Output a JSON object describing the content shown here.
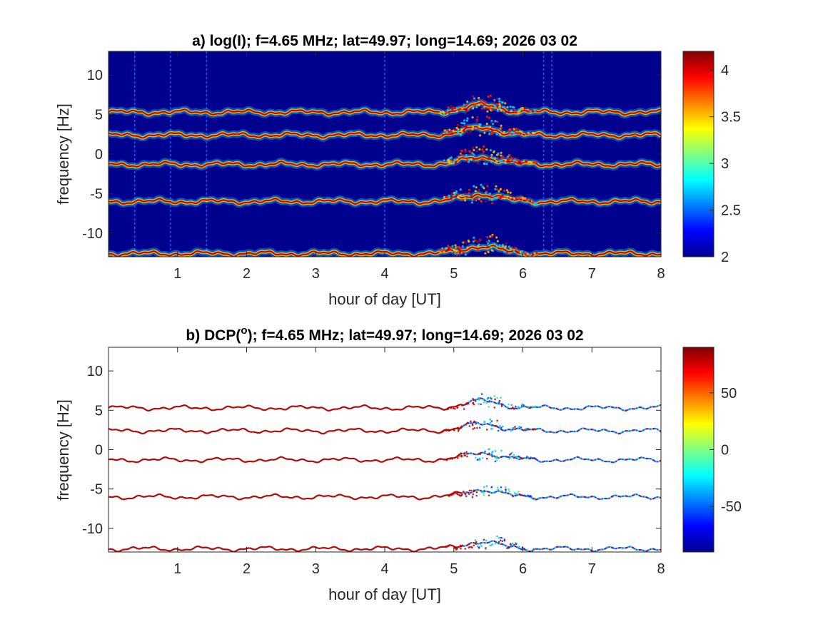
{
  "chart_data": [
    {
      "type": "heatmap",
      "title_main": "a) log(I); f=4.65 MHz;  lat=49.97; long=14.69; 2026 03 02",
      "xlabel": "hour of day [UT]",
      "ylabel": "frequency [Hz]",
      "xlim": [
        0,
        8
      ],
      "ylim": [
        -13,
        13
      ],
      "xticks": [
        "1",
        "2",
        "3",
        "4",
        "5",
        "6",
        "7",
        "8"
      ],
      "yticks": [
        "10",
        "5",
        "0",
        "-5",
        "-10"
      ],
      "colorbar": {
        "clim": [
          2,
          4.2
        ],
        "ticks": [
          "4",
          "3.5",
          "3",
          "2.5",
          "2"
        ],
        "colormap": "jet"
      },
      "background_color": "#00008f",
      "grid": false,
      "doppler_traces_hz": [
        5.3,
        2.4,
        -1.3,
        -6.0,
        -12.6
      ],
      "disturbance_window_ut": [
        4.8,
        6.2
      ]
    },
    {
      "type": "heatmap",
      "title_main": "b) DCP(",
      "title_sup": "o",
      "title_rest": "); f=4.65 MHz;  lat=49.97; long=14.69; 2026 03 02",
      "xlabel": "hour of day [UT]",
      "ylabel": "frequency [Hz]",
      "xlim": [
        0,
        8
      ],
      "ylim": [
        -13,
        13
      ],
      "xticks": [
        "1",
        "2",
        "3",
        "4",
        "5",
        "6",
        "7",
        "8"
      ],
      "yticks": [
        "10",
        "5",
        "0",
        "-5",
        "-10"
      ],
      "colorbar": {
        "clim": [
          -90,
          90
        ],
        "ticks": [
          "50",
          "0",
          "-50"
        ],
        "colormap": "jet"
      },
      "background_color": "#ffffff",
      "grid": false,
      "doppler_traces_hz": [
        5.3,
        2.4,
        -1.3,
        -6.0,
        -12.6
      ],
      "disturbance_window_ut": [
        4.8,
        6.2
      ]
    }
  ]
}
